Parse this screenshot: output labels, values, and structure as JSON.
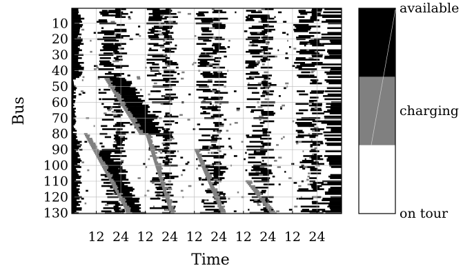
{
  "chart_data": {
    "type": "heatmap",
    "xlabel": "Time",
    "ylabel": "Bus",
    "x_tick_labels": [
      "12",
      "24",
      "12",
      "24",
      "12",
      "24",
      "12",
      "24",
      "12",
      "24"
    ],
    "x_tick_hours": [
      12,
      24,
      36,
      48,
      60,
      72,
      84,
      96,
      108,
      120
    ],
    "x_range_hours": [
      0,
      132
    ],
    "y_tick_labels": [
      "10",
      "20",
      "30",
      "40",
      "50",
      "60",
      "70",
      "80",
      "90",
      "100",
      "110",
      "120",
      "130"
    ],
    "y_ticks": [
      10,
      20,
      30,
      40,
      50,
      60,
      70,
      80,
      90,
      100,
      110,
      120,
      130
    ],
    "y_range": [
      1,
      130
    ],
    "grid": true,
    "states": [
      {
        "value": 0,
        "name": "on tour",
        "color": "#ffffff"
      },
      {
        "value": 1,
        "name": "charging",
        "color": "#808080"
      },
      {
        "value": 2,
        "name": "available",
        "color": "#000000"
      }
    ],
    "colorbar_labels": [
      "available",
      "charging",
      "on tour"
    ],
    "approximate_patterns": {
      "bus_count": 130,
      "period_hours": 24,
      "daily_available_window_start_hours": [
        12,
        36,
        60,
        84,
        108
      ],
      "charging_diagonal_bands": [
        {
          "bus_from": 45,
          "bus_to": 80,
          "hour_from": 16,
          "hour_to": 33
        },
        {
          "bus_from": 80,
          "bus_to": 130,
          "hour_from": 6,
          "hour_to": 27
        },
        {
          "bus_from": 80,
          "bus_to": 130,
          "hour_from": 36,
          "hour_to": 48
        },
        {
          "bus_from": 90,
          "bus_to": 130,
          "hour_from": 60,
          "hour_to": 73
        },
        {
          "bus_from": 110,
          "bus_to": 130,
          "hour_from": 85,
          "hour_to": 97
        }
      ]
    }
  }
}
